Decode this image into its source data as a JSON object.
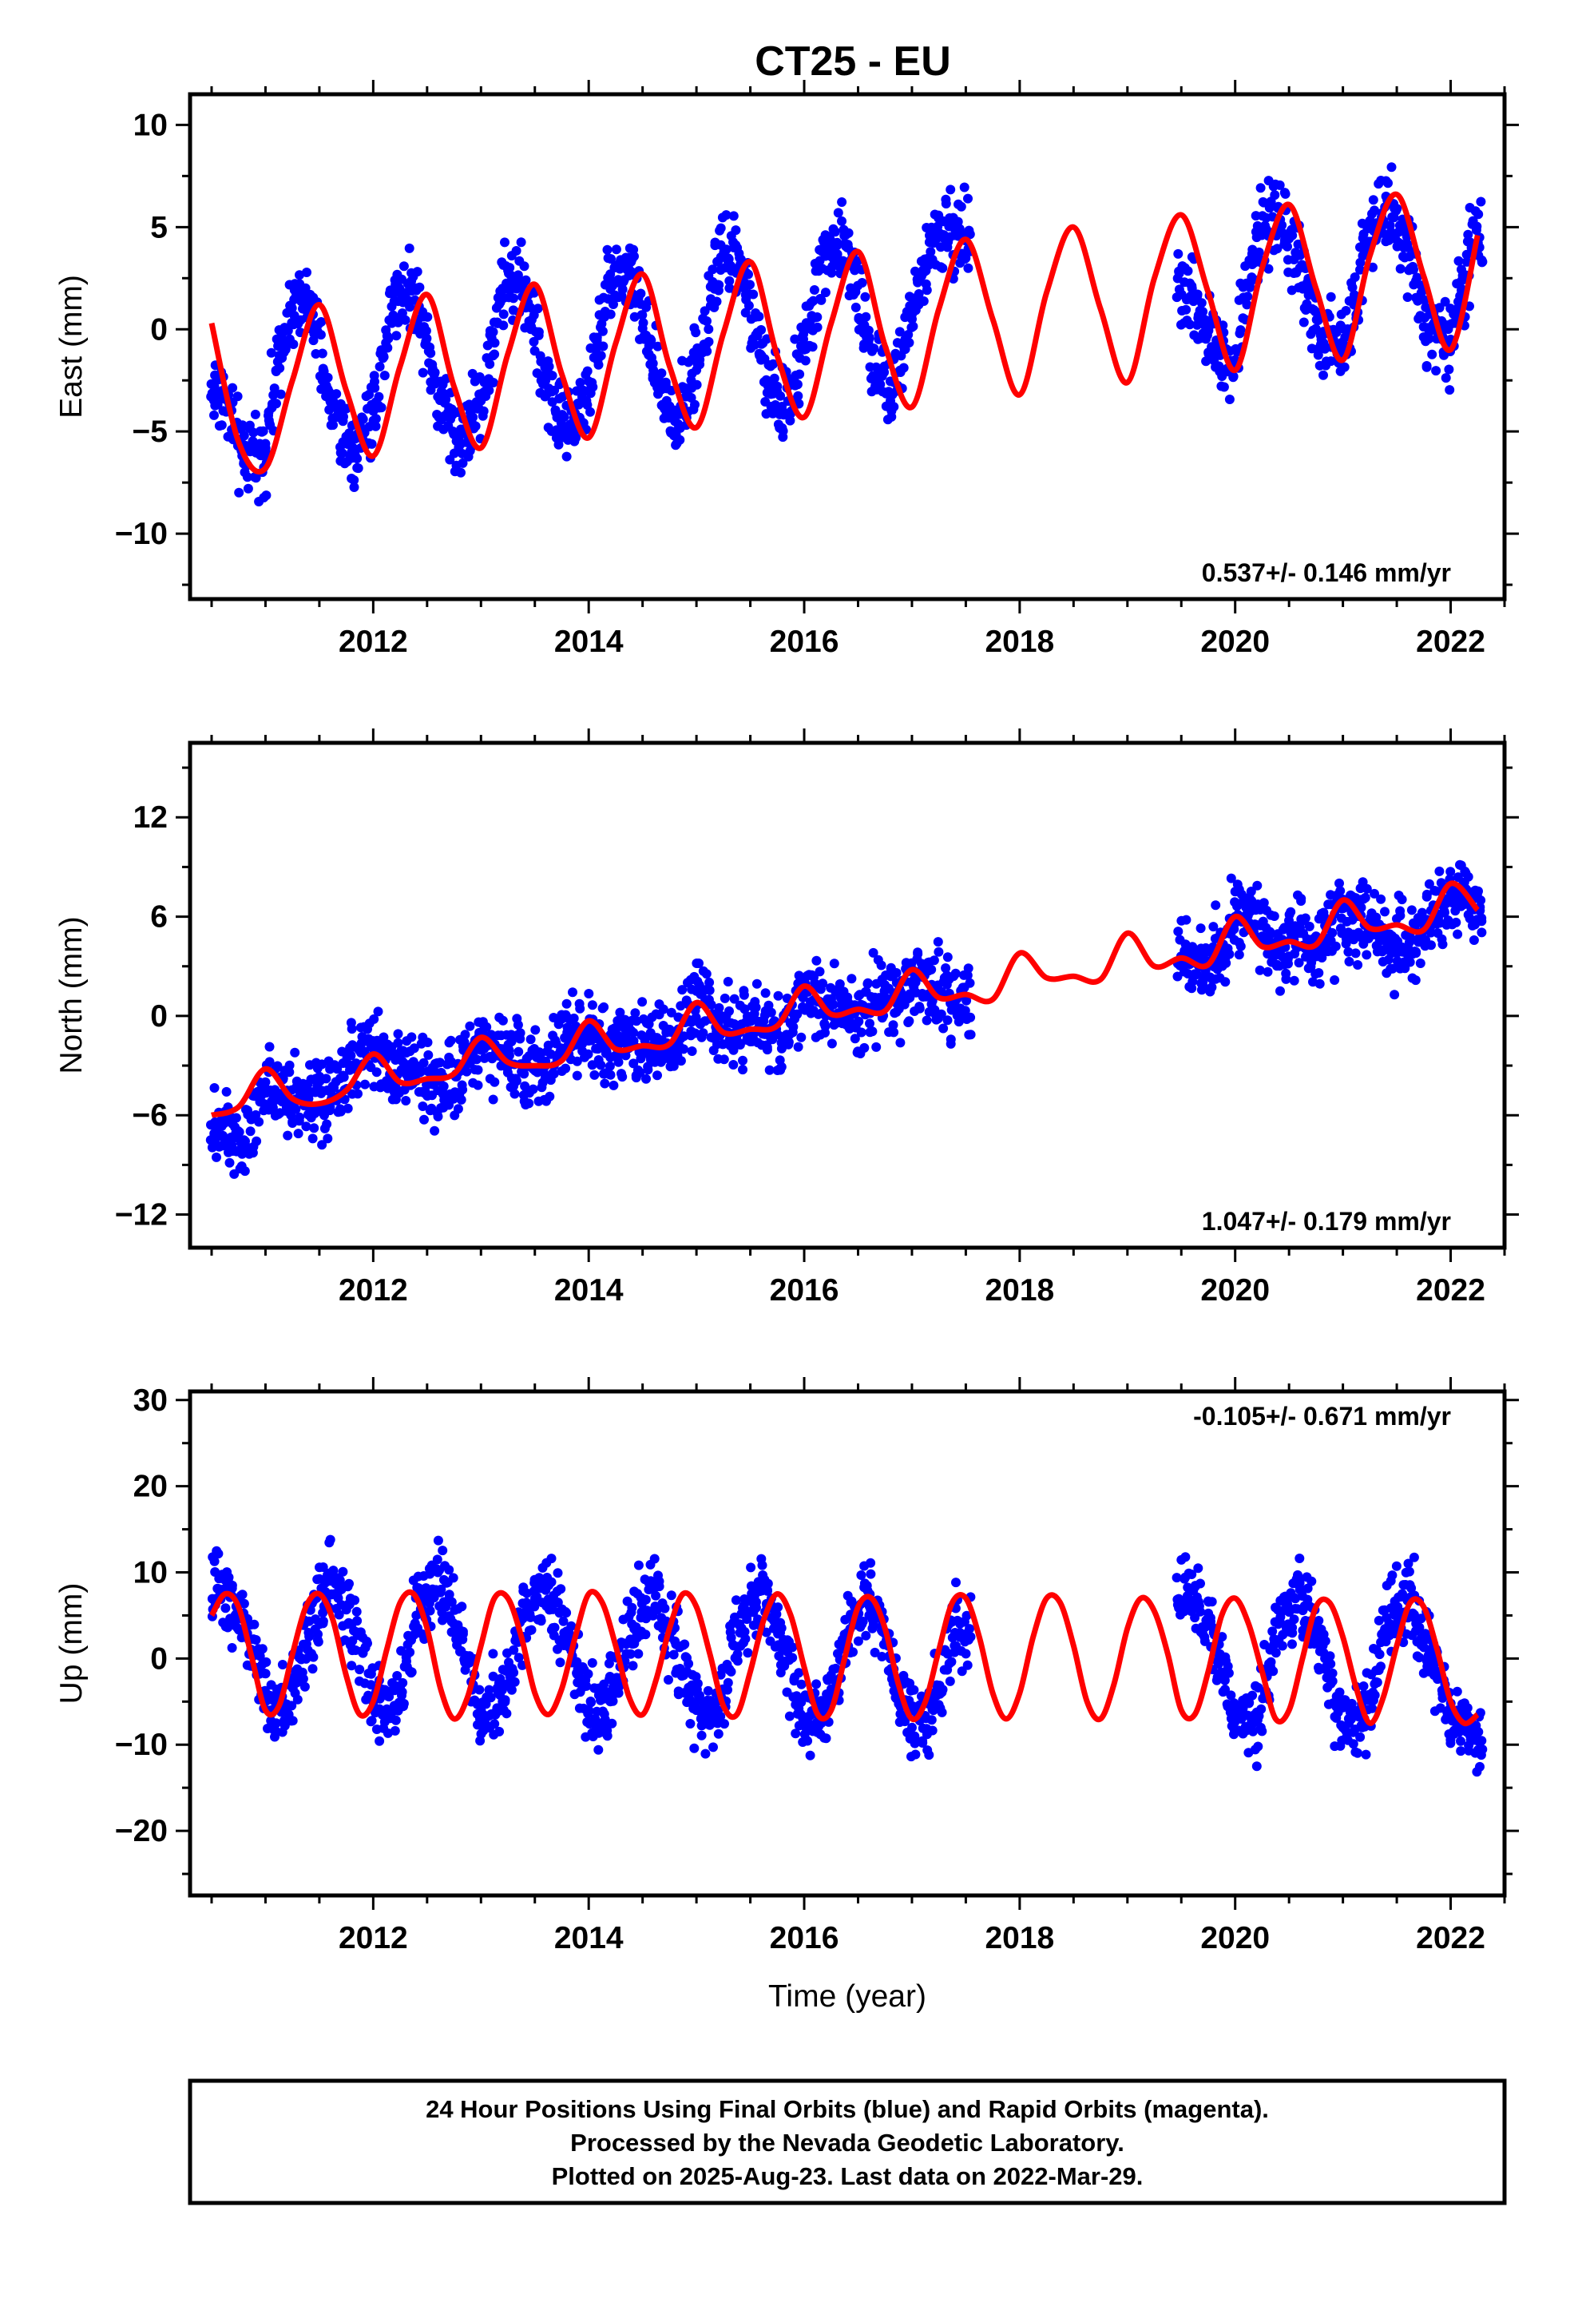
{
  "title": "CT25 - EU",
  "chart_data": [
    {
      "type": "scatter",
      "ylabel": "East (mm)",
      "xlabel": "",
      "xlim": [
        2010.3,
        2022.5
      ],
      "ylim": [
        -13.2,
        11.5
      ],
      "xticks": [
        2012,
        2014,
        2016,
        2018,
        2020,
        2022
      ],
      "xtick_labels": [
        "2012",
        "2014",
        "2016",
        "2018",
        "2020",
        "2022"
      ],
      "yticks": [
        -10,
        -5,
        0,
        5,
        10
      ],
      "ytick_labels": [
        "−10",
        "−5",
        "0",
        "5",
        "10"
      ],
      "rate_text": "0.537+/- 0.146 mm/yr",
      "rate_position": "bottom-right",
      "data_gap": [
        2017.55,
        2019.45
      ],
      "series": [
        {
          "color": "#0000ff",
          "kind": "points",
          "x": [
            2010.6,
            2010.8,
            2011.0,
            2011.2,
            2011.4,
            2011.6,
            2011.8,
            2012.0,
            2012.2,
            2012.4,
            2012.6,
            2012.8,
            2013.0,
            2013.2,
            2013.4,
            2013.6,
            2013.8,
            2014.0,
            2014.2,
            2014.4,
            2014.6,
            2014.8,
            2015.0,
            2015.2,
            2015.4,
            2015.6,
            2015.8,
            2016.0,
            2016.2,
            2016.4,
            2016.6,
            2016.8,
            2017.0,
            2017.2,
            2017.4,
            2019.6,
            2019.8,
            2020.0,
            2020.2,
            2020.4,
            2020.6,
            2020.8,
            2021.0,
            2021.2,
            2021.4,
            2021.6,
            2021.8,
            2022.0,
            2022.2
          ],
          "y": [
            -3.0,
            -6.5,
            -5.6,
            0.8,
            1.3,
            -3.5,
            -6.0,
            -4.0,
            1.8,
            1.9,
            -3.3,
            -5.5,
            -3.5,
            2.0,
            2.3,
            -2.5,
            -5.0,
            -3.0,
            2.7,
            2.8,
            -2.0,
            -4.5,
            -2.0,
            3.3,
            3.5,
            -1.5,
            -4.0,
            -1.0,
            3.9,
            4.0,
            -0.5,
            -3.5,
            0.5,
            4.5,
            4.6,
            2.0,
            -1.0,
            -1.5,
            4.5,
            6.0,
            3.0,
            -0.5,
            -1.0,
            4.0,
            6.5,
            4.0,
            0.0,
            -0.5,
            4.0
          ]
        },
        {
          "color": "#ff0000",
          "kind": "model",
          "x": [
            2010.5,
            2010.75,
            2011.0,
            2011.25,
            2011.5,
            2011.75,
            2012.0,
            2012.25,
            2012.5,
            2012.75,
            2013.0,
            2013.25,
            2013.5,
            2013.75,
            2014.0,
            2014.25,
            2014.5,
            2014.75,
            2015.0,
            2015.25,
            2015.5,
            2015.75,
            2016.0,
            2016.25,
            2016.5,
            2016.75,
            2017.0,
            2017.25,
            2017.5,
            2017.75,
            2018.0,
            2018.25,
            2018.5,
            2018.75,
            2019.0,
            2019.25,
            2019.5,
            2019.75,
            2020.0,
            2020.25,
            2020.5,
            2020.75,
            2021.0,
            2021.25,
            2021.5,
            2021.75,
            2022.0,
            2022.25
          ],
          "y": [
            0.3,
            -5.5,
            -6.8,
            -2.5,
            1.2,
            -3.0,
            -6.2,
            -1.8,
            1.7,
            -2.8,
            -5.8,
            -1.2,
            2.2,
            -2.2,
            -5.3,
            -0.7,
            2.7,
            -1.8,
            -4.8,
            -0.2,
            3.3,
            -1.3,
            -4.3,
            0.3,
            3.8,
            -0.8,
            -3.8,
            1.0,
            4.4,
            0.5,
            -3.2,
            1.8,
            5.0,
            1.0,
            -2.6,
            2.5,
            5.6,
            1.8,
            -2.0,
            3.0,
            6.1,
            2.0,
            -1.5,
            3.6,
            6.6,
            2.6,
            -1.0,
            4.6
          ]
        }
      ]
    },
    {
      "type": "scatter",
      "ylabel": "North (mm)",
      "xlabel": "",
      "xlim": [
        2010.3,
        2022.5
      ],
      "ylim": [
        -14.0,
        16.5
      ],
      "xticks": [
        2012,
        2014,
        2016,
        2018,
        2020,
        2022
      ],
      "xtick_labels": [
        "2012",
        "2014",
        "2016",
        "2018",
        "2020",
        "2022"
      ],
      "yticks": [
        -12,
        -6,
        0,
        6,
        12
      ],
      "ytick_labels": [
        "−12",
        "−6",
        "0",
        "6",
        "12"
      ],
      "rate_text": "1.047+/- 0.179 mm/yr",
      "rate_position": "bottom-right",
      "data_gap": [
        2017.55,
        2019.45
      ],
      "series": [
        {
          "color": "#0000ff",
          "kind": "points",
          "x": [
            2010.6,
            2010.8,
            2011.0,
            2011.2,
            2011.4,
            2011.6,
            2011.8,
            2012.0,
            2012.2,
            2012.4,
            2012.6,
            2012.8,
            2013.0,
            2013.2,
            2013.4,
            2013.6,
            2013.8,
            2014.0,
            2014.2,
            2014.4,
            2014.6,
            2014.8,
            2015.0,
            2015.2,
            2015.4,
            2015.6,
            2015.8,
            2016.0,
            2016.2,
            2016.4,
            2016.6,
            2016.8,
            2017.0,
            2017.2,
            2017.4,
            2019.6,
            2019.8,
            2020.0,
            2020.2,
            2020.4,
            2020.6,
            2020.8,
            2021.0,
            2021.2,
            2021.4,
            2021.6,
            2021.8,
            2022.0,
            2022.2
          ],
          "y": [
            -6.5,
            -7.5,
            -4.0,
            -4.5,
            -5.0,
            -5.5,
            -3.0,
            -2.0,
            -3.5,
            -3.0,
            -4.5,
            -3.0,
            -1.5,
            -2.0,
            -3.5,
            -3.0,
            -1.0,
            -1.5,
            -2.5,
            -1.5,
            -2.0,
            -1.5,
            1.5,
            -0.5,
            -1.0,
            -0.5,
            -1.5,
            1.5,
            0.5,
            0.0,
            0.5,
            1.0,
            2.0,
            1.5,
            1.0,
            3.5,
            3.0,
            6.0,
            5.5,
            4.0,
            5.0,
            4.0,
            6.5,
            5.5,
            4.5,
            4.0,
            5.5,
            7.5,
            7.0
          ]
        },
        {
          "color": "#ff0000",
          "kind": "model",
          "x": [
            2010.5,
            2010.75,
            2011.0,
            2011.25,
            2011.5,
            2011.75,
            2012.0,
            2012.25,
            2012.5,
            2012.75,
            2013.0,
            2013.25,
            2013.5,
            2013.75,
            2014.0,
            2014.25,
            2014.5,
            2014.75,
            2015.0,
            2015.25,
            2015.5,
            2015.75,
            2016.0,
            2016.25,
            2016.5,
            2016.75,
            2017.0,
            2017.25,
            2017.5,
            2017.75,
            2018.0,
            2018.25,
            2018.5,
            2018.75,
            2019.0,
            2019.25,
            2019.5,
            2019.75,
            2020.0,
            2020.25,
            2020.5,
            2020.75,
            2021.0,
            2021.25,
            2021.5,
            2021.75,
            2022.0,
            2022.25
          ],
          "y": [
            -6.0,
            -5.5,
            -3.2,
            -5.0,
            -5.3,
            -4.5,
            -2.3,
            -4.0,
            -3.8,
            -3.5,
            -1.3,
            -2.8,
            -3.0,
            -2.7,
            -0.3,
            -2.0,
            -1.8,
            -1.7,
            0.8,
            -1.0,
            -0.8,
            -0.6,
            1.8,
            0.1,
            0.4,
            0.3,
            2.8,
            1.1,
            1.3,
            1.0,
            3.8,
            2.3,
            2.4,
            2.2,
            5.0,
            3.0,
            3.5,
            3.1,
            6.0,
            4.2,
            4.5,
            4.3,
            7.0,
            5.3,
            5.5,
            5.2,
            8.0,
            6.4
          ]
        }
      ]
    },
    {
      "type": "scatter",
      "ylabel": "Up (mm)",
      "xlabel": "Time (year)",
      "xlim": [
        2010.3,
        2022.5
      ],
      "ylim": [
        -27.5,
        31.0
      ],
      "xticks": [
        2012,
        2014,
        2016,
        2018,
        2020,
        2022
      ],
      "xtick_labels": [
        "2012",
        "2014",
        "2016",
        "2018",
        "2020",
        "2022"
      ],
      "yticks": [
        -20,
        -10,
        0,
        10,
        20,
        30
      ],
      "ytick_labels": [
        "−20",
        "−10",
        "0",
        "10",
        "20",
        "30"
      ],
      "rate_text": "-0.105+/- 0.671 mm/yr",
      "rate_position": "top-right",
      "data_gap": [
        2017.55,
        2019.45
      ],
      "series": [
        {
          "color": "#0000ff",
          "kind": "points",
          "x": [
            2010.6,
            2010.8,
            2011.0,
            2011.2,
            2011.4,
            2011.6,
            2011.8,
            2012.0,
            2012.2,
            2012.4,
            2012.6,
            2012.8,
            2013.0,
            2013.2,
            2013.4,
            2013.6,
            2013.8,
            2014.0,
            2014.2,
            2014.4,
            2014.6,
            2014.8,
            2015.0,
            2015.2,
            2015.4,
            2015.6,
            2015.8,
            2016.0,
            2016.2,
            2016.4,
            2016.6,
            2016.8,
            2017.0,
            2017.2,
            2017.4,
            2019.6,
            2019.8,
            2020.0,
            2020.2,
            2020.4,
            2020.6,
            2020.8,
            2021.0,
            2021.2,
            2021.4,
            2021.6,
            2021.8,
            2022.0,
            2022.2
          ],
          "y": [
            8.0,
            5.0,
            -5.0,
            -6.0,
            3.0,
            9.0,
            4.0,
            -5.0,
            -6.0,
            5.0,
            10.0,
            3.0,
            -6.0,
            -5.0,
            5.0,
            9.0,
            2.0,
            -6.0,
            -5.0,
            4.0,
            8.0,
            2.0,
            -6.0,
            -6.0,
            4.0,
            8.0,
            1.0,
            -7.0,
            -6.0,
            3.0,
            7.0,
            0.0,
            -8.0,
            -6.0,
            3.0,
            8.0,
            3.0,
            -7.0,
            -7.0,
            4.0,
            8.0,
            1.0,
            -8.0,
            -7.0,
            3.0,
            7.0,
            1.0,
            -7.0,
            -8.0
          ]
        },
        {
          "color": "#ff0000",
          "kind": "model",
          "x": [
            2010.5,
            2010.625,
            2010.75,
            2010.875,
            2011.0,
            2011.125,
            2011.25,
            2011.375,
            2011.5,
            2011.625,
            2011.75,
            2011.875,
            2012.0,
            2012.125,
            2012.25,
            2012.375,
            2012.5,
            2012.625,
            2012.75,
            2012.875,
            2013.0,
            2013.125,
            2013.25,
            2013.375,
            2013.5,
            2013.625,
            2013.75,
            2013.875,
            2014.0,
            2014.125,
            2014.25,
            2014.375,
            2014.5,
            2014.625,
            2014.75,
            2014.875,
            2015.0,
            2015.125,
            2015.25,
            2015.375,
            2015.5,
            2015.625,
            2015.75,
            2015.875,
            2016.0,
            2016.125,
            2016.25,
            2016.375,
            2016.5,
            2016.625,
            2016.75,
            2016.875,
            2017.0,
            2017.125,
            2017.25,
            2017.375,
            2017.5,
            2017.625,
            2017.75,
            2017.875,
            2018.0,
            2018.125,
            2018.25,
            2018.375,
            2018.5,
            2018.625,
            2018.75,
            2018.875,
            2019.0,
            2019.125,
            2019.25,
            2019.375,
            2019.5,
            2019.625,
            2019.75,
            2019.875,
            2020.0,
            2020.125,
            2020.25,
            2020.375,
            2020.5,
            2020.625,
            2020.75,
            2020.875,
            2021.0,
            2021.125,
            2021.25,
            2021.375,
            2021.5,
            2021.625,
            2021.75,
            2021.875,
            2022.0,
            2022.125,
            2022.25
          ],
          "y": [
            5.0,
            7.5,
            6.0,
            0.0,
            -6.0,
            -5.5,
            0.5,
            6.0,
            7.5,
            4.5,
            -2.0,
            -6.5,
            -5.0,
            1.0,
            6.5,
            7.5,
            3.5,
            -3.5,
            -7.0,
            -4.5,
            1.5,
            7.0,
            7.0,
            2.5,
            -4.0,
            -6.5,
            -3.5,
            2.5,
            7.5,
            6.5,
            1.5,
            -4.5,
            -6.5,
            -2.5,
            3.5,
            7.5,
            6.0,
            0.5,
            -5.5,
            -6.5,
            -1.5,
            4.5,
            7.5,
            5.0,
            -1.0,
            -6.5,
            -6.0,
            0.0,
            6.0,
            7.0,
            3.5,
            -3.0,
            -7.0,
            -5.0,
            1.0,
            6.5,
            7.0,
            2.5,
            -4.0,
            -7.0,
            -4.0,
            2.5,
            7.0,
            6.5,
            1.5,
            -5.0,
            -7.0,
            -3.0,
            3.5,
            7.0,
            5.5,
            0.5,
            -6.0,
            -6.5,
            -1.5,
            5.0,
            7.0,
            4.0,
            -1.5,
            -7.0,
            -6.0,
            0.0,
            6.0,
            6.5,
            2.5,
            -3.5,
            -7.5,
            -4.5,
            1.5,
            6.5,
            6.0,
            1.0,
            -5.0,
            -7.5,
            -6.5
          ]
        }
      ]
    }
  ],
  "footer": {
    "line1": "24 Hour Positions Using Final Orbits (blue) and Rapid Orbits (magenta).",
    "line2": "Processed by the Nevada Geodetic Laboratory.",
    "line3": "Plotted on 2025-Aug-23. Last data on 2022-Mar-29."
  }
}
